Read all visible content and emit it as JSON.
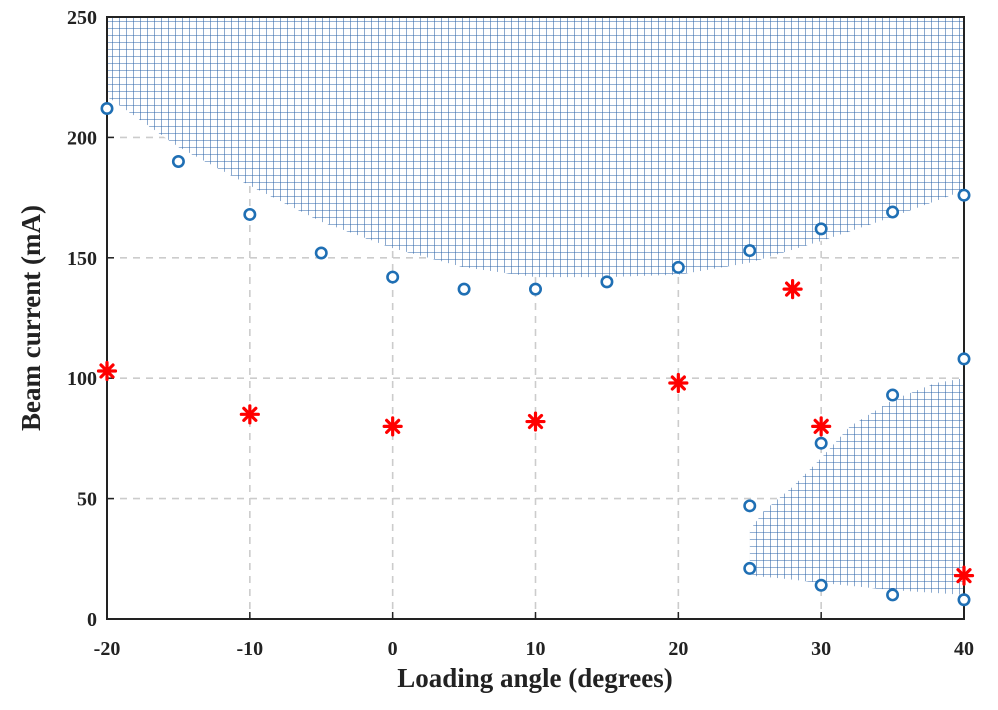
{
  "chart_data": {
    "type": "scatter",
    "xlabel": "Loading angle (degrees)",
    "ylabel": "Beam current (mA)",
    "xlim": [
      -20,
      40
    ],
    "ylim": [
      0,
      250
    ],
    "xticks": [
      -20,
      -10,
      0,
      10,
      20,
      30,
      40
    ],
    "yticks": [
      0,
      50,
      100,
      150,
      200,
      250
    ],
    "grid": true,
    "colors": {
      "circles": "#1f6fb4",
      "stars": "#ff0000",
      "hatch": "#2e64a8",
      "axis": "#222222",
      "grid": "#cccccc"
    },
    "series": [
      {
        "marker": "circle",
        "points": [
          [
            -20,
            212
          ],
          [
            -15,
            190
          ],
          [
            -10,
            168
          ],
          [
            -5,
            152
          ],
          [
            0,
            142
          ],
          [
            5,
            137
          ],
          [
            10,
            137
          ],
          [
            15,
            140
          ],
          [
            20,
            146
          ],
          [
            25,
            153
          ],
          [
            30,
            162
          ],
          [
            35,
            169
          ],
          [
            40,
            176
          ],
          [
            25,
            47
          ],
          [
            30,
            73
          ],
          [
            35,
            93
          ],
          [
            40,
            108
          ],
          [
            25,
            21
          ],
          [
            30,
            14
          ],
          [
            35,
            10
          ],
          [
            40,
            8
          ]
        ]
      },
      {
        "marker": "star",
        "points": [
          [
            -20,
            103
          ],
          [
            -10,
            85
          ],
          [
            0,
            80
          ],
          [
            10,
            82
          ],
          [
            20,
            98
          ],
          [
            28,
            137
          ],
          [
            30,
            80
          ],
          [
            40,
            18
          ]
        ]
      }
    ],
    "regions": [
      {
        "fill": "crosshatch",
        "boundary": [
          [
            -20,
            250
          ],
          [
            -20,
            217
          ],
          [
            -15,
            196
          ],
          [
            -10,
            180
          ],
          [
            -5,
            165
          ],
          [
            0,
            154
          ],
          [
            5,
            146
          ],
          [
            10,
            142
          ],
          [
            15,
            142
          ],
          [
            20,
            143
          ],
          [
            25,
            148
          ],
          [
            30,
            157
          ],
          [
            35,
            167
          ],
          [
            40,
            178
          ],
          [
            40,
            250
          ]
        ]
      },
      {
        "fill": "crosshatch",
        "boundary": [
          [
            25,
            37
          ],
          [
            26,
            45
          ],
          [
            28,
            55
          ],
          [
            30,
            67
          ],
          [
            32,
            80
          ],
          [
            35,
            91
          ],
          [
            38,
            98
          ],
          [
            40,
            100
          ],
          [
            40,
            10
          ],
          [
            35,
            12
          ],
          [
            30,
            15
          ],
          [
            27,
            17
          ],
          [
            25,
            18
          ]
        ]
      }
    ]
  }
}
